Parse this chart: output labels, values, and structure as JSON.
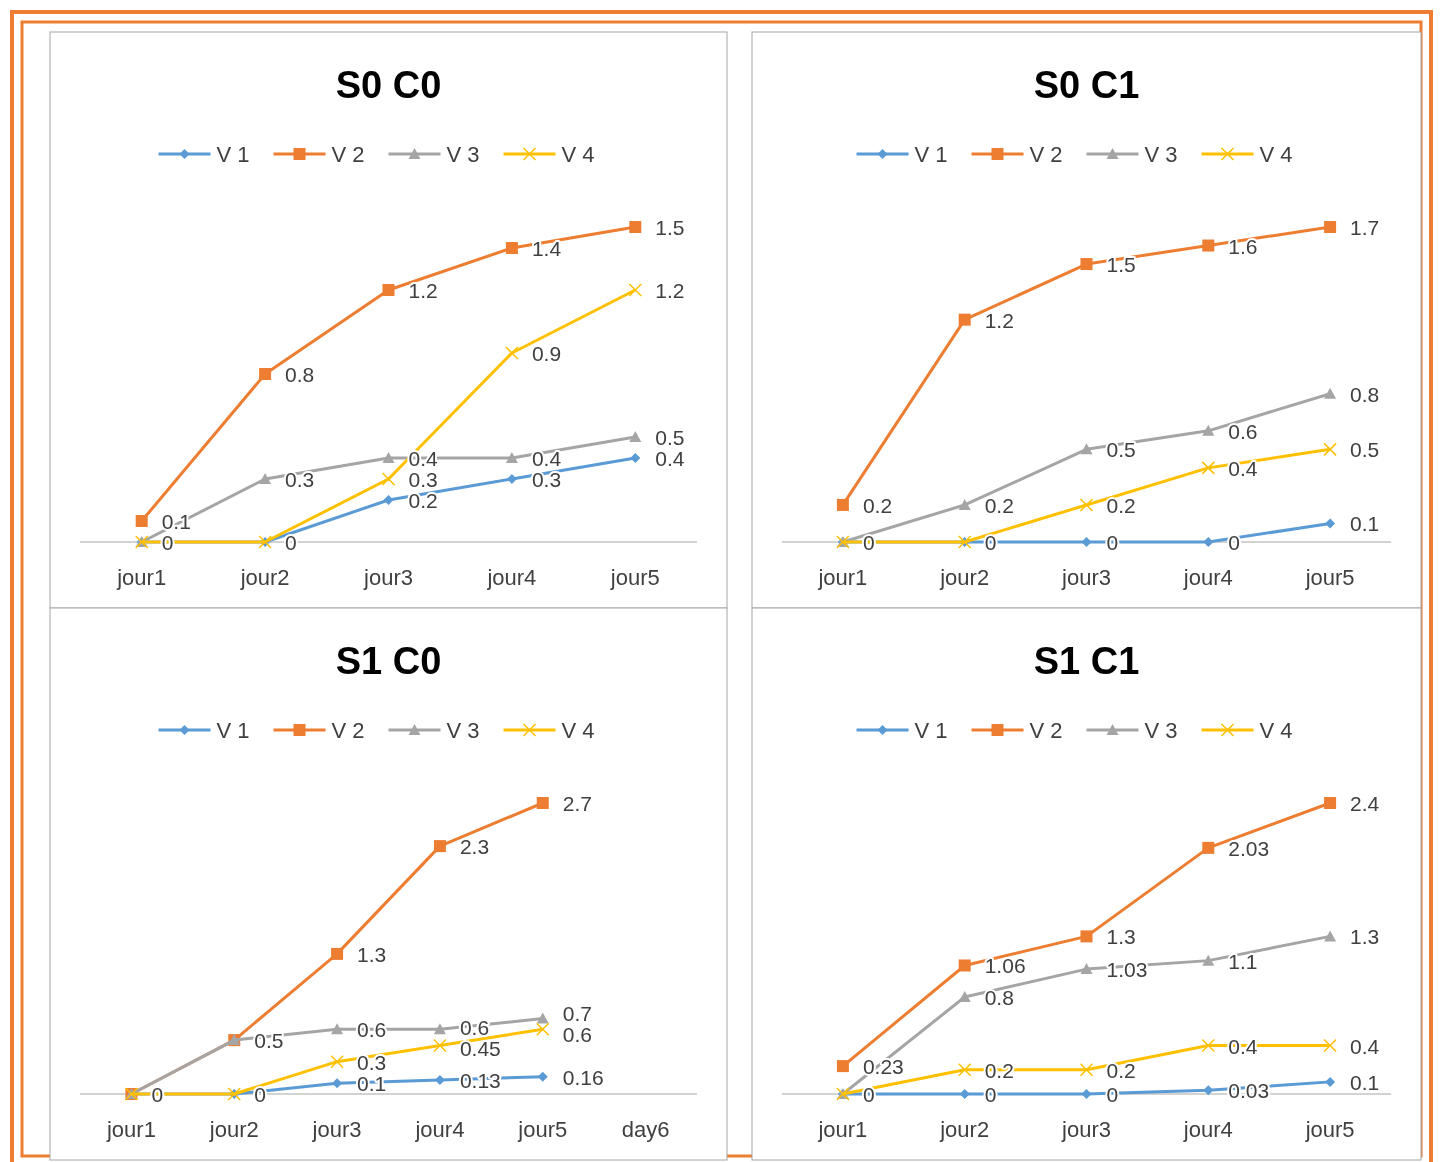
{
  "chart_data": [
    {
      "type": "line",
      "title": "S0 C0",
      "categories": [
        "jour1",
        "jour2",
        "jour3",
        "jour4",
        "jour5"
      ],
      "legend": "top",
      "series": [
        {
          "name": "V 1",
          "color": "#5b9bd5",
          "marker": "diamond",
          "values": [
            0,
            0,
            0.2,
            0.3,
            0.4
          ],
          "value_labels": [
            null,
            null,
            "0.2",
            "0.3",
            "0.4"
          ]
        },
        {
          "name": "V 2",
          "color": "#ed7d31",
          "marker": "square",
          "values": [
            0.1,
            0.8,
            1.2,
            1.4,
            1.5
          ],
          "value_labels": [
            "0.1",
            "0.8",
            "1.2",
            "1.4",
            "1.5"
          ]
        },
        {
          "name": "V 3",
          "color": "#a5a5a5",
          "marker": "triangle",
          "values": [
            0,
            0.3,
            0.4,
            0.4,
            0.5
          ],
          "value_labels": [
            "0",
            "0.3",
            "0.4",
            "0.4",
            "0.5"
          ]
        },
        {
          "name": "V 4",
          "color": "#ffc000",
          "marker": "cross",
          "values": [
            0,
            0,
            0.3,
            0.9,
            1.2
          ],
          "value_labels": [
            null,
            "0",
            "0.3",
            "0.9",
            "1.2"
          ]
        }
      ]
    },
    {
      "type": "line",
      "title": "S0 C1",
      "categories": [
        "jour1",
        "jour2",
        "jour3",
        "jour4",
        "jour5"
      ],
      "legend": "top",
      "series": [
        {
          "name": "V 1",
          "color": "#5b9bd5",
          "marker": "diamond",
          "values": [
            0,
            0,
            0,
            0,
            0.1
          ],
          "value_labels": [
            null,
            null,
            "0",
            "0",
            "0.1"
          ]
        },
        {
          "name": "V 2",
          "color": "#ed7d31",
          "marker": "square",
          "values": [
            0.2,
            1.2,
            1.5,
            1.6,
            1.7
          ],
          "value_labels": [
            "0.2",
            "1.2",
            "1.5",
            "1.6",
            "1.7"
          ]
        },
        {
          "name": "V 3",
          "color": "#a5a5a5",
          "marker": "triangle",
          "values": [
            0,
            0.2,
            0.5,
            0.6,
            0.8
          ],
          "value_labels": [
            "0",
            "0.2",
            "0.5",
            "0.6",
            "0.8"
          ]
        },
        {
          "name": "V 4",
          "color": "#ffc000",
          "marker": "cross",
          "values": [
            0,
            0,
            0.2,
            0.4,
            0.5
          ],
          "value_labels": [
            null,
            "0",
            "0.2",
            "0.4",
            "0.5"
          ]
        }
      ]
    },
    {
      "type": "line",
      "title": "S1 C0",
      "categories": [
        "jour1",
        "jour2",
        "jour3",
        "jour4",
        "jour5",
        "day6"
      ],
      "legend": "top",
      "series": [
        {
          "name": "V 1",
          "color": "#5b9bd5",
          "marker": "diamond",
          "values": [
            0,
            0,
            0.1,
            0.13,
            0.16,
            null
          ],
          "value_labels": [
            null,
            null,
            "0.1",
            "0.13",
            "0.16",
            null
          ]
        },
        {
          "name": "V 2",
          "color": "#ed7d31",
          "marker": "square",
          "values": [
            0,
            0.5,
            1.3,
            2.3,
            2.7,
            null
          ],
          "value_labels": [
            "0",
            "0.5",
            "1.3",
            "2.3",
            "2.7",
            null
          ]
        },
        {
          "name": "V 3",
          "color": "#a5a5a5",
          "marker": "triangle",
          "values": [
            0,
            0.5,
            0.6,
            0.6,
            0.7,
            null
          ],
          "value_labels": [
            null,
            null,
            "0.6",
            "0.6",
            "0.7",
            null
          ]
        },
        {
          "name": "V 4",
          "color": "#ffc000",
          "marker": "cross",
          "values": [
            0,
            0,
            0.3,
            0.45,
            0.6,
            null
          ],
          "value_labels": [
            null,
            "0",
            "0.3",
            "0.45",
            "0.6",
            null
          ]
        }
      ]
    },
    {
      "type": "line",
      "title": "S1 C1",
      "categories": [
        "jour1",
        "jour2",
        "jour3",
        "jour4",
        "jour5"
      ],
      "legend": "top",
      "series": [
        {
          "name": "V 1",
          "color": "#5b9bd5",
          "marker": "diamond",
          "values": [
            0,
            0,
            0,
            0.03,
            0.1
          ],
          "value_labels": [
            null,
            "0",
            "0",
            "0.03",
            "0.1"
          ]
        },
        {
          "name": "V 2",
          "color": "#ed7d31",
          "marker": "square",
          "values": [
            0.23,
            1.06,
            1.3,
            2.03,
            2.4
          ],
          "value_labels": [
            "0.23",
            "1.06",
            "1.3",
            "2.03",
            "2.4"
          ]
        },
        {
          "name": "V 3",
          "color": "#a5a5a5",
          "marker": "triangle",
          "values": [
            0,
            0.8,
            1.03,
            1.1,
            1.3
          ],
          "value_labels": [
            "0",
            "0.8",
            "1.03",
            "1.1",
            "1.3"
          ]
        },
        {
          "name": "V 4",
          "color": "#ffc000",
          "marker": "cross",
          "values": [
            0,
            0.2,
            0.2,
            0.4,
            0.4
          ],
          "value_labels": [
            null,
            "0.2",
            "0.2",
            "0.4",
            "0.4"
          ]
        }
      ]
    }
  ]
}
